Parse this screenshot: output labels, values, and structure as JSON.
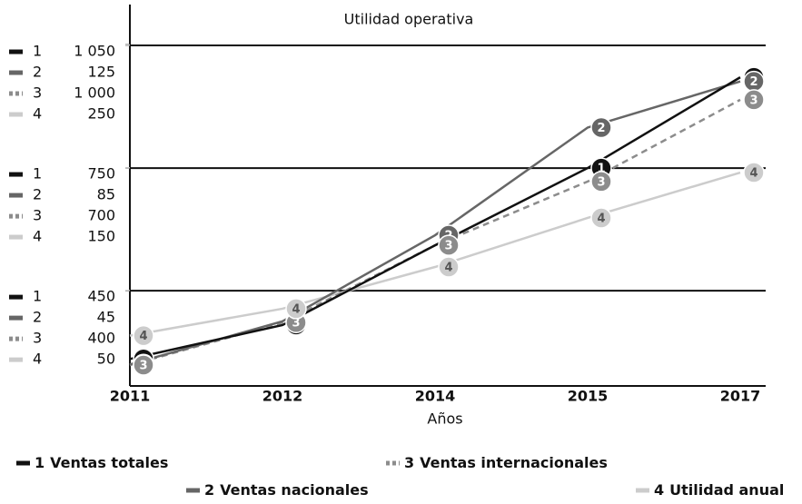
{
  "chart_data": {
    "type": "line",
    "title": "Utilidad operativa",
    "x_label": "Años",
    "categories": [
      "2011",
      "2012",
      "2014",
      "2015",
      "2017"
    ],
    "grid": true,
    "series": [
      {
        "id": "1",
        "name": "Ventas totales",
        "color": "#111111",
        "dash": false,
        "values": [
          283,
          366,
          561,
          750,
          972
        ],
        "ylim": [
          217,
          1150
        ],
        "yticks": [
          450,
          750,
          {
            "value": 1050,
            "label": "1 050"
          }
        ]
      },
      {
        "id": "2",
        "name": "Ventas nacionales",
        "color": "#666666",
        "dash": false,
        "values": [
          21,
          35,
          63,
          98,
          113
        ],
        "ylim": [
          14,
          138
        ],
        "yticks": [
          45,
          85,
          125
        ]
      },
      {
        "id": "3",
        "name": "Ventas internacionales",
        "color": "#8c8c8c",
        "dash": true,
        "values": [
          218,
          322,
          511,
          667,
          867
        ],
        "ylim": [
          167,
          1100
        ],
        "yticks": [
          400,
          700,
          {
            "value": 1000,
            "label": "1 000"
          }
        ]
      },
      {
        "id": "4",
        "name": "Utilidad anual",
        "color": "#cccccc",
        "dash": false,
        "values": [
          13,
          35,
          69,
          109,
          146
        ],
        "ylim": [
          -28,
          283
        ],
        "yticks": [
          50,
          150,
          250
        ]
      }
    ]
  }
}
